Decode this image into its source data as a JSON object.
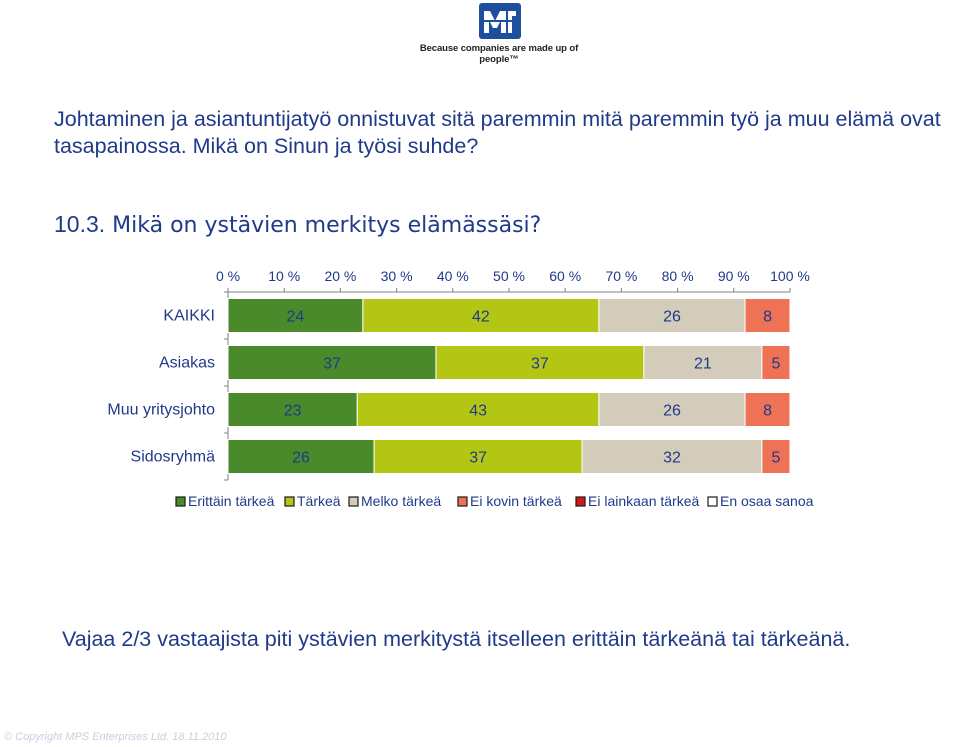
{
  "header": {
    "logo_icon": "mps-logo-icon",
    "tagline": "Because companies are made up of people™"
  },
  "intro_text": "Johtaminen ja asiantuntijatyö onnistuvat sitä paremmin mitä paremmin työ ja muu elämä ovat tasapainossa. Mikä on Sinun ja työsi suhde?",
  "question": {
    "number": "10.3.",
    "text": "Mikä on ystävien merkitys elämässäsi?"
  },
  "chart_data": {
    "type": "bar",
    "orientation": "horizontal",
    "stacked": "percent",
    "categories": [
      "KAIKKI",
      "Asiakas",
      "Muu yritysjohto",
      "Sidosryhmä"
    ],
    "series": [
      {
        "name": "Erittäin tärkeä",
        "color": "#4a8a2a",
        "values": [
          24,
          37,
          23,
          26
        ]
      },
      {
        "name": "Tärkeä",
        "color": "#b3c614",
        "values": [
          42,
          37,
          43,
          37
        ]
      },
      {
        "name": "Melko tärkeä",
        "color": "#d3ccba",
        "values": [
          26,
          21,
          26,
          32
        ]
      },
      {
        "name": "Ei kovin tärkeä",
        "color": "#ee7356",
        "values": [
          8,
          5,
          8,
          5
        ]
      },
      {
        "name": "Ei lainkaan tärkeä",
        "color": "#d21a1a",
        "values": [
          0,
          0,
          0,
          0
        ]
      },
      {
        "name": "En osaa sanoa",
        "color": "#ffffff",
        "values": [
          0,
          0,
          0,
          0
        ]
      }
    ],
    "x_ticks": [
      "0 %",
      "10 %",
      "20 %",
      "30 %",
      "40 %",
      "50 %",
      "60 %",
      "70 %",
      "80 %",
      "90 %",
      "100 %"
    ],
    "xlim": [
      0,
      100
    ],
    "x_axis_position": "top",
    "legend_position": "bottom",
    "grid": false
  },
  "summary_text": "Vajaa 2/3 vastaajista piti ystävien merkitystä itselleen erittäin tärkeänä tai tärkeänä.",
  "footer_text": "© Copyright MPS Enterprises Ltd.  18.11.2010"
}
